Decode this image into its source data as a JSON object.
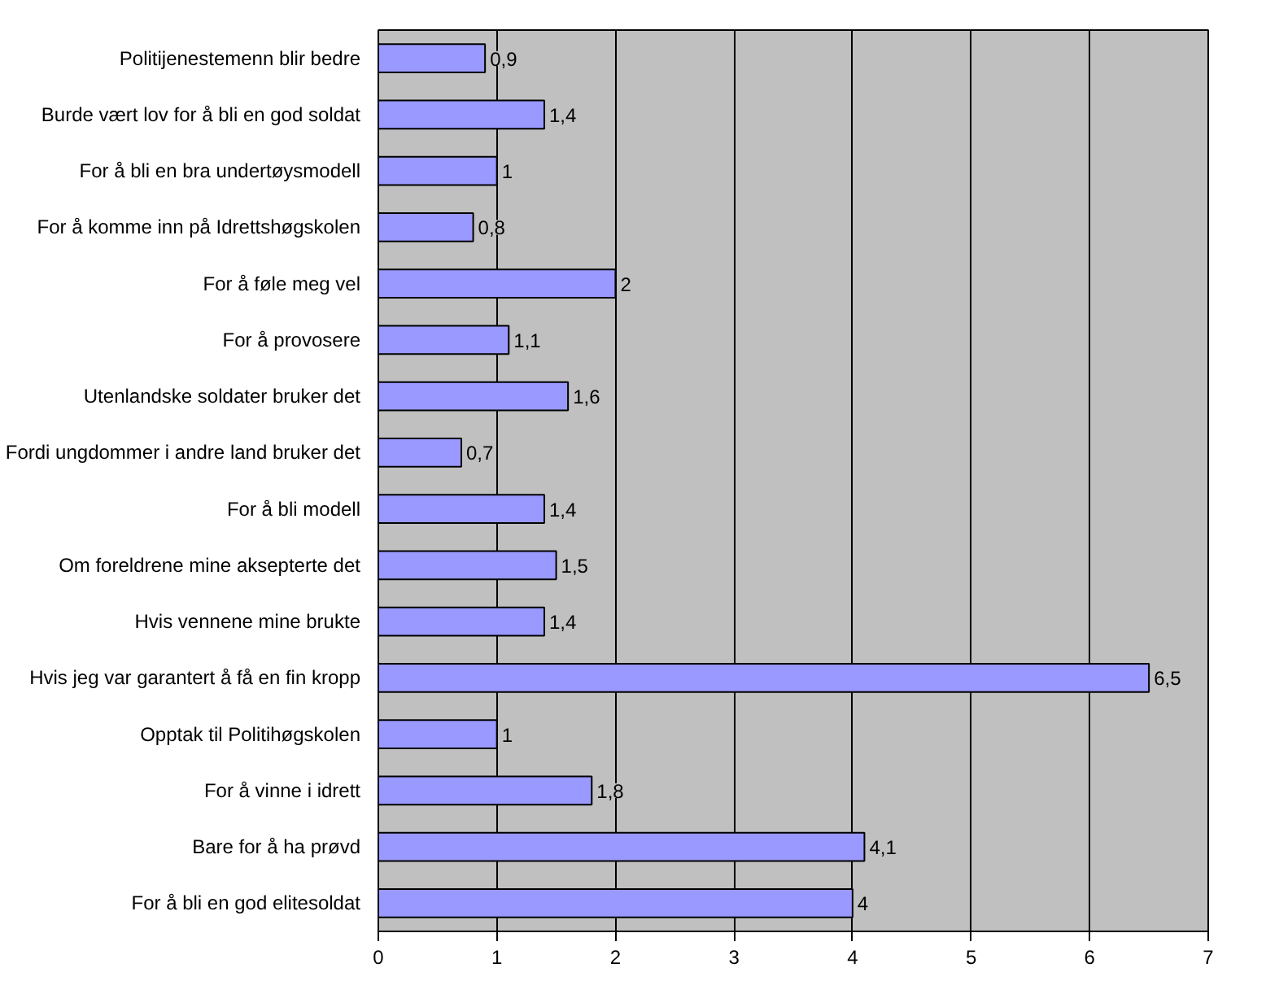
{
  "chart_data": {
    "type": "bar",
    "orientation": "horizontal",
    "categories": [
      "Politijenestemenn blir bedre",
      "Burde vært lov for å bli en god soldat",
      "For å bli en bra undertøysmodell",
      "For å komme inn på Idrettshøgskolen",
      "For å føle meg vel",
      "For å provosere",
      "Utenlandske soldater bruker det",
      "Fordi ungdommer i andre land bruker det",
      "For å bli modell",
      "Om foreldrene mine aksepterte det",
      "Hvis vennene mine brukte",
      "Hvis jeg var garantert å få en fin kropp",
      "Opptak til Politihøgskolen",
      "For å vinne i idrett",
      "Bare for å ha prøvd",
      "For å bli en god elitesoldat"
    ],
    "values": [
      0.9,
      1.4,
      1,
      0.8,
      2,
      1.1,
      1.6,
      0.7,
      1.4,
      1.5,
      1.4,
      6.5,
      1,
      1.8,
      4.1,
      4
    ],
    "value_labels": [
      "0,9",
      "1,4",
      "1",
      "0,8",
      "2",
      "1,1",
      "1,6",
      "0,7",
      "1,4",
      "1,5",
      "1,4",
      "6,5",
      "1",
      "1,8",
      "4,1",
      "4"
    ],
    "color": "#9999ff",
    "xlim": [
      0,
      7
    ],
    "xticks": [
      0,
      1,
      2,
      3,
      4,
      5,
      6,
      7
    ],
    "grid": "x"
  }
}
